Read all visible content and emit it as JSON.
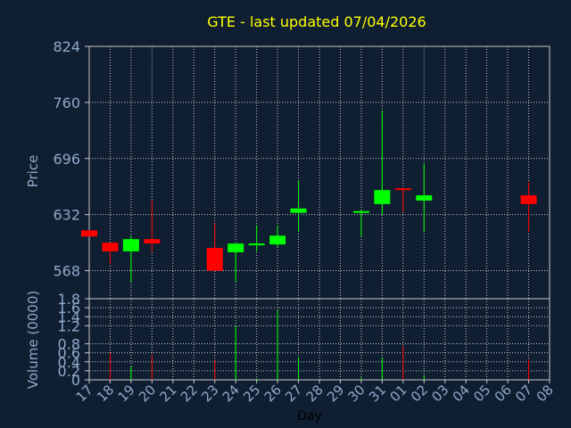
{
  "chart_data": {
    "type": "candlestick",
    "title": "GTE - last updated 07/04/2026",
    "xlabel": "Day",
    "price_panel": {
      "ylabel": "Price",
      "ylim": [
        536,
        824
      ],
      "yticks": [
        824,
        760,
        696,
        632,
        568
      ],
      "grid": true
    },
    "volume_panel": {
      "ylabel": "Volume (0000)",
      "ylim": [
        0,
        1.8
      ],
      "yticks": [
        "0",
        "0.2",
        "0.4",
        "0.6",
        "0.8",
        "1.2",
        "1.4",
        "1.6",
        "1.8"
      ],
      "ytick_values": [
        0,
        0.2,
        0.4,
        0.6,
        0.8,
        1.2,
        1.4,
        1.6,
        1.8
      ],
      "grid": true
    },
    "x_ticks": [
      "17",
      "18",
      "19",
      "20",
      "21",
      "22",
      "23",
      "24",
      "25",
      "26",
      "27",
      "28",
      "29",
      "30",
      "31",
      "01",
      "02",
      "03",
      "04",
      "05",
      "06",
      "07",
      "08"
    ],
    "candles": [
      {
        "day": "17",
        "open": 614,
        "close": 607,
        "high": 614,
        "low": 607,
        "volume": 0
      },
      {
        "day": "18",
        "open": 600,
        "close": 590,
        "high": 600,
        "low": 575,
        "volume": 0.6
      },
      {
        "day": "19",
        "open": 590,
        "close": 604,
        "high": 608,
        "low": 555,
        "volume": 0.3
      },
      {
        "day": "20",
        "open": 604,
        "close": 599,
        "high": 648,
        "low": 590,
        "volume": 0.55
      },
      {
        "day": "23",
        "open": 594,
        "close": 568,
        "high": 622,
        "low": 568,
        "volume": 0.45
      },
      {
        "day": "24",
        "open": 589,
        "close": 599,
        "high": 599,
        "low": 555,
        "volume": 1.2
      },
      {
        "day": "25",
        "open": 597,
        "close": 599,
        "high": 620,
        "low": 590,
        "volume": 0.03
      },
      {
        "day": "26",
        "open": 598,
        "close": 608,
        "high": 620,
        "low": 595,
        "volume": 1.55
      },
      {
        "day": "27",
        "open": 634,
        "close": 639,
        "high": 671,
        "low": 612,
        "volume": 0.5
      },
      {
        "day": "30",
        "open": 634,
        "close": 636,
        "high": 637,
        "low": 607,
        "volume": 0.05
      },
      {
        "day": "31",
        "open": 644,
        "close": 660,
        "high": 750,
        "low": 632,
        "volume": 0.5
      },
      {
        "day": "01",
        "open": 662,
        "close": 660,
        "high": 662,
        "low": 635,
        "volume": 0.75
      },
      {
        "day": "02",
        "open": 648,
        "close": 654,
        "high": 690,
        "low": 612,
        "volume": 0.1
      },
      {
        "day": "07",
        "open": 654,
        "close": 644,
        "high": 669,
        "low": 612,
        "volume": 0.45
      }
    ],
    "colors": {
      "background": "#0f1e31",
      "plot": "#0f1e31",
      "up": "#00ff00",
      "down": "#ff0000",
      "grid": "#c8c8c8",
      "axis_text": "#8fa9c9",
      "title": "#ffff00",
      "xlabel": "#000000"
    }
  }
}
